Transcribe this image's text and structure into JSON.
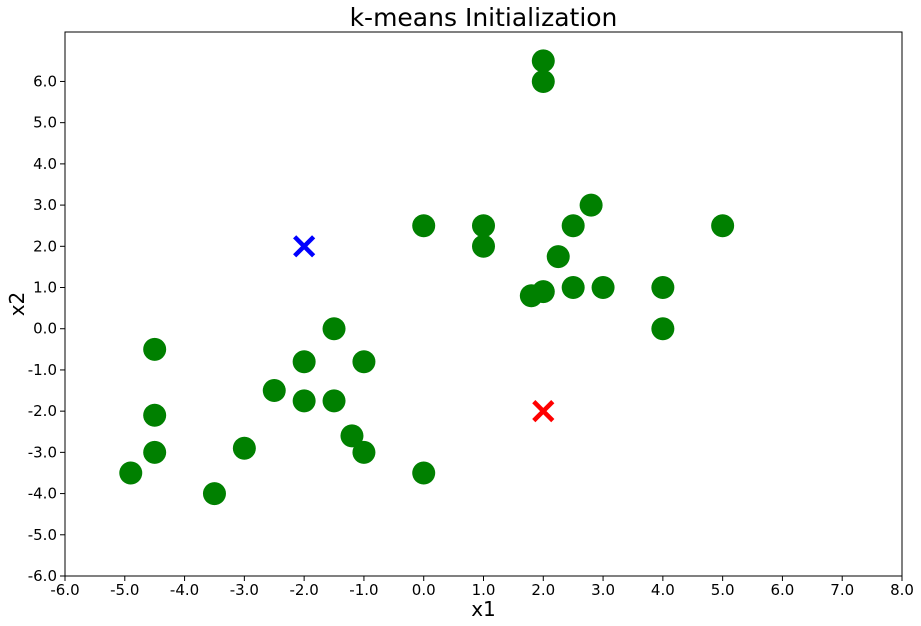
{
  "chart_data": {
    "type": "scatter",
    "title": "k-means Initialization",
    "xlabel": "x1",
    "ylabel": "x2",
    "xlim": [
      -6.0,
      8.0
    ],
    "ylim": [
      -6.0,
      7.2
    ],
    "xticks": [
      "-6.0",
      "-5.0",
      "-4.0",
      "-3.0",
      "-2.0",
      "-1.0",
      "0.0",
      "1.0",
      "2.0",
      "3.0",
      "4.0",
      "5.0",
      "6.0",
      "7.0",
      "8.0"
    ],
    "yticks": [
      "-6.0",
      "-5.0",
      "-4.0",
      "-3.0",
      "-2.0",
      "-1.0",
      "0.0",
      "1.0",
      "2.0",
      "3.0",
      "4.0",
      "5.0",
      "6.0"
    ],
    "grid": false,
    "series": [
      {
        "marker": "circle",
        "color": "#008000",
        "points": [
          [
            -4.9,
            -3.5
          ],
          [
            -4.5,
            -0.5
          ],
          [
            -4.5,
            -2.1
          ],
          [
            -4.5,
            -3.0
          ],
          [
            -3.5,
            -4.0
          ],
          [
            -3.0,
            -2.9
          ],
          [
            -2.5,
            -1.5
          ],
          [
            -2.0,
            -0.8
          ],
          [
            -2.0,
            -1.75
          ],
          [
            -1.5,
            0.0
          ],
          [
            -1.5,
            -1.75
          ],
          [
            -1.2,
            -2.6
          ],
          [
            -1.0,
            -0.8
          ],
          [
            -1.0,
            -3.0
          ],
          [
            0.0,
            2.5
          ],
          [
            0.0,
            -3.5
          ],
          [
            1.0,
            2.5
          ],
          [
            1.0,
            2.0
          ],
          [
            1.8,
            0.8
          ],
          [
            2.0,
            0.9
          ],
          [
            2.0,
            6.5
          ],
          [
            2.0,
            6.0
          ],
          [
            2.25,
            1.75
          ],
          [
            2.5,
            2.5
          ],
          [
            2.5,
            1.0
          ],
          [
            2.8,
            3.0
          ],
          [
            3.0,
            1.0
          ],
          [
            4.0,
            1.0
          ],
          [
            4.0,
            0.0
          ],
          [
            5.0,
            2.5
          ]
        ]
      },
      {
        "marker": "x",
        "color": "#0000ff",
        "points": [
          [
            -2.0,
            2.0
          ]
        ]
      },
      {
        "marker": "x",
        "color": "#ff0000",
        "points": [
          [
            2.0,
            -2.0
          ]
        ]
      }
    ]
  }
}
